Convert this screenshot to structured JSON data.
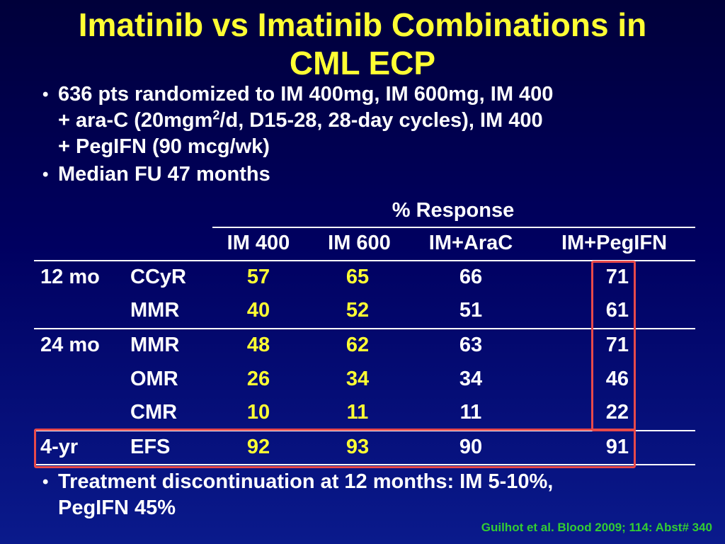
{
  "slide": {
    "title_line1": "Imatinib vs Imatinib Combinations in",
    "title_line2": "CML ECP",
    "bullets": {
      "b1_line1": "636 pts randomized to IM 400mg, IM 600mg, IM 400",
      "b1_line2_pre": "+ ara-C (20mgm",
      "b1_line2_sup": "2",
      "b1_line2_post": "/d, D15-28, 28-day cycles), IM 400",
      "b1_line3": "+ PegIFN (90 mcg/wk)",
      "b2": "Median FU 47 months",
      "b3_line1": "Treatment discontinuation at 12 months: IM 5-10%,",
      "b3_line2": "PegIFN 45%"
    },
    "citation": "Guilhot et al. Blood 2009; 114: Abst# 340"
  },
  "table": {
    "group_header": "% Response",
    "columns": [
      "IM 400",
      "IM 600",
      "IM+AraC",
      "IM+PegIFN"
    ],
    "rows": [
      {
        "period": "12 mo",
        "metric": "CCyR",
        "values": [
          "57",
          "65",
          "66",
          "71"
        ]
      },
      {
        "period": "",
        "metric": "MMR",
        "values": [
          "40",
          "52",
          "51",
          "61"
        ]
      },
      {
        "period": "24 mo",
        "metric": "MMR",
        "values": [
          "48",
          "62",
          "63",
          "71"
        ]
      },
      {
        "period": "",
        "metric": "OMR",
        "values": [
          "26",
          "34",
          "34",
          "46"
        ]
      },
      {
        "period": "",
        "metric": "CMR",
        "values": [
          "10",
          "11",
          "11",
          "22"
        ]
      },
      {
        "period": "4-yr",
        "metric": "EFS",
        "values": [
          "92",
          "93",
          "90",
          "91"
        ]
      }
    ],
    "highlight_color": "#e84a4a",
    "highlight_value_color": "#ffff33"
  }
}
